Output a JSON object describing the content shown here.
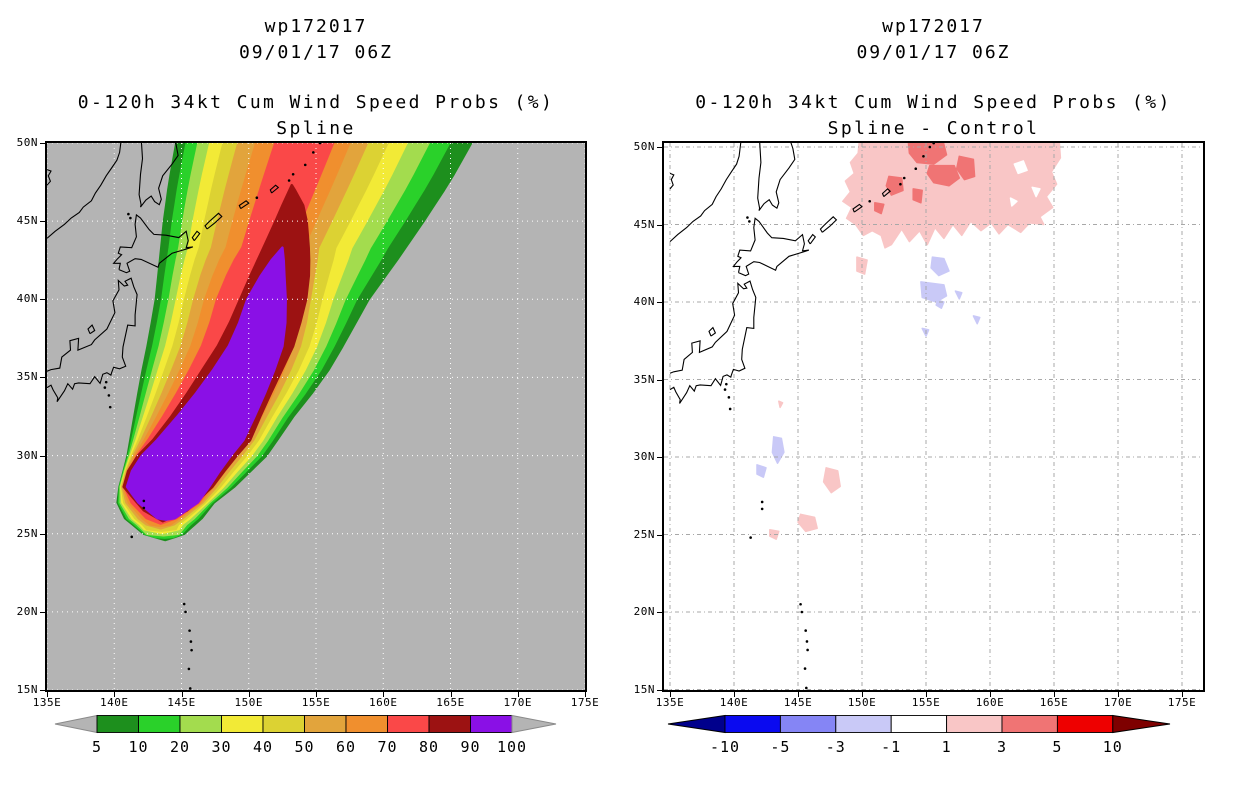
{
  "panels": [
    {
      "name": "spline",
      "header": {
        "line1": "wp172017",
        "line2": "09/01/17 06Z",
        "subtitle1": "0-120h 34kt Cum Wind Speed Probs (%)",
        "subtitle2": "Spline"
      },
      "map": {
        "background": "#b4b4b4",
        "grid_color": "#ffffff",
        "coast_color": "#000000",
        "x_tick_labels": [
          "135E",
          "140E",
          "145E",
          "150E",
          "155E",
          "160E",
          "165E",
          "170E",
          "175E"
        ],
        "y_tick_labels": [
          "50N",
          "45N",
          "40N",
          "35N",
          "30N",
          "25N",
          "20N",
          "15N"
        ]
      },
      "colorbar": {
        "tick_labels": [
          "5",
          "10",
          "20",
          "30",
          "40",
          "50",
          "60",
          "70",
          "80",
          "90",
          "100"
        ],
        "segment_colors": [
          "#1d8f1d",
          "#2ad12a",
          "#a3dc4e",
          "#f2ea36",
          "#dcd233",
          "#e2a43c",
          "#f08f2e",
          "#fa4848",
          "#9c1212",
          "#8a10e6"
        ],
        "left_arrow_color": "#b4b4b4",
        "right_arrow_color": "#b4b4b4"
      }
    },
    {
      "name": "spline-minus-control",
      "header": {
        "line1": "wp172017",
        "line2": "09/01/17 06Z",
        "subtitle1": "0-120h 34kt Cum Wind Speed Probs (%)",
        "subtitle2": "Spline - Control"
      },
      "map": {
        "background": "#ffffff",
        "grid_color": "#a8a8a8",
        "coast_color": "#000000",
        "x_tick_labels": [
          "135E",
          "140E",
          "145E",
          "150E",
          "155E",
          "160E",
          "165E",
          "170E",
          "175E"
        ],
        "y_tick_labels": [
          "50N",
          "45N",
          "40N",
          "35N",
          "30N",
          "25N",
          "20N",
          "15N"
        ]
      },
      "colorbar": {
        "tick_labels": [
          "-10",
          "-5",
          "-3",
          "-1",
          "1",
          "3",
          "5",
          "10"
        ],
        "segment_colors": [
          "#0a0af0",
          "#8585f5",
          "#c9c9f7",
          "#ffffff",
          "#f9c6c6",
          "#f07474",
          "#ee0000"
        ],
        "left_arrow_color": "#00008c",
        "right_arrow_color": "#7e0000"
      }
    }
  ],
  "chart_data": {
    "type": "contour-map",
    "panels": [
      {
        "title": "wp172017",
        "valid": "09/01/17 06Z",
        "quantity": "0-120h 34kt Cum Wind Speed Probs (%)",
        "method": "Spline",
        "lon_range_deg_e": [
          135,
          175
        ],
        "lat_range_deg_n": [
          15,
          50
        ],
        "grid_interval_deg": 5,
        "contour_levels_percent": [
          5,
          10,
          20,
          30,
          40,
          50,
          60,
          70,
          80,
          90,
          100
        ],
        "plume": {
          "tip_lon_lat": [
            144,
            25
          ],
          "axis_exit_top_lon": 156,
          "outer_extent_at_50N_lon": [
            144.7,
            166.8
          ],
          "core_90_100_extent": "143E-153E between 26N and 43N, apex near (152.5E, 43.3N)",
          "dark_red_80_90_apex": [
            153.2,
            47.3
          ],
          "orientation": "narrow SW tip near Ogasawara widening toward NE, east of Japan"
        }
      },
      {
        "title": "wp172017",
        "valid": "09/01/17 06Z",
        "quantity": "0-120h 34kt Cum Wind Speed Probs (%)",
        "method": "Spline - Control",
        "lon_range_deg_e": [
          135,
          175
        ],
        "lat_range_deg_n": [
          15,
          50
        ],
        "difference_levels_percent": [
          -10,
          -5,
          -3,
          -1,
          1,
          3,
          5,
          10
        ],
        "features": [
          {
            "band": "+1 to +3",
            "area": "large region 149E-165.5E, 43.5N-50N"
          },
          {
            "band": "+3 to +5",
            "area": "embedded cells near 152E-159E, 46N-50N"
          },
          {
            "band": "-1 to -3",
            "area": "small patches near 154.5E-157E, 38N-43N"
          },
          {
            "band": "-1 to -3",
            "area": "small patches near 142E-144E, 28.5N-31.5N"
          },
          {
            "band": "+1 to +3",
            "area": "small patches near 147E-148E 28.5N, 145E-146.5E 26N, 143E 25N, 150E 42N"
          }
        ]
      }
    ]
  }
}
